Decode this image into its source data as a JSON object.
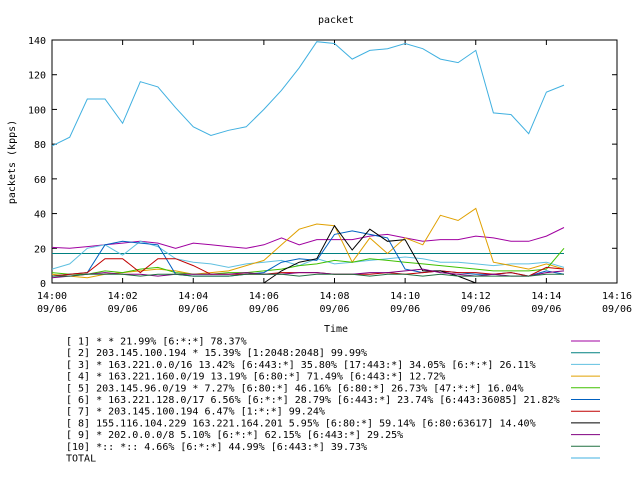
{
  "chart_data": {
    "type": "line",
    "title": "packet",
    "xlabel": "Time",
    "ylabel": "packets (kpps)",
    "ylim": [
      0,
      140
    ],
    "yticks": [
      0,
      20,
      40,
      60,
      80,
      100,
      120,
      140
    ],
    "xlim": [
      "14:00",
      "14:16"
    ],
    "xticks": [
      {
        "time": "14:00",
        "date": "09/06"
      },
      {
        "time": "14:02",
        "date": "09/06"
      },
      {
        "time": "14:04",
        "date": "09/06"
      },
      {
        "time": "14:06",
        "date": "09/06"
      },
      {
        "time": "14:08",
        "date": "09/06"
      },
      {
        "time": "14:10",
        "date": "09/06"
      },
      {
        "time": "14:12",
        "date": "09/06"
      },
      {
        "time": "14:14",
        "date": "09/06"
      },
      {
        "time": "14:16",
        "date": "09/06"
      }
    ],
    "grid": false,
    "legend_position": "bottom",
    "x": [
      "14:00:00",
      "14:00:30",
      "14:01:00",
      "14:01:30",
      "14:02:00",
      "14:02:30",
      "14:03:00",
      "14:03:30",
      "14:04:00",
      "14:04:30",
      "14:05:00",
      "14:05:30",
      "14:06:00",
      "14:06:30",
      "14:07:00",
      "14:07:30",
      "14:08:00",
      "14:08:30",
      "14:09:00",
      "14:09:30",
      "14:10:00",
      "14:10:30",
      "14:11:00",
      "14:11:30",
      "14:12:00",
      "14:12:30",
      "14:13:00",
      "14:13:30",
      "14:14:00",
      "14:14:30"
    ],
    "series": [
      {
        "name": "[ 1] * * 21.99%  [6:*:*] 78.37%",
        "color": "#a000a0",
        "values": [
          20.5,
          20,
          21,
          22,
          23,
          24,
          23,
          20,
          23,
          22,
          21,
          20,
          22,
          26,
          22,
          25,
          25,
          25,
          27,
          28,
          26,
          24,
          25,
          25,
          27,
          26,
          24,
          24,
          27,
          32
        ]
      },
      {
        "name": "[ 2] 203.145.100.194 * 15.39%  [1:2048:2048] 99.99%",
        "color": "#008080",
        "values": [
          17,
          17,
          17,
          17,
          17,
          17,
          17,
          17,
          17,
          17,
          17,
          17,
          17,
          17,
          17,
          17,
          17,
          17,
          17,
          17,
          17,
          17,
          17,
          17,
          17,
          17,
          17,
          17,
          17,
          17
        ]
      },
      {
        "name": "[ 3] * 163.221.0.0/16 13.42%  [6:443:*] 35.80% [17:443:*] 34.05% [6:*:*] 26.11%",
        "color": "#60c0e0",
        "values": [
          8,
          11,
          20,
          22,
          16,
          24,
          21,
          14,
          12,
          11,
          9,
          11,
          12,
          13,
          10,
          14,
          11,
          12,
          13,
          14,
          15,
          14,
          12,
          12,
          11,
          10,
          11,
          11,
          12,
          9
        ]
      },
      {
        "name": "[ 4] * 163.221.160.0/19 13.19%  [6:80:*] 71.49% [6:443:*] 12.72%",
        "color": "#e0a000",
        "values": [
          5,
          4,
          3,
          5,
          6,
          7,
          8,
          7,
          5,
          6,
          7,
          10,
          13,
          22,
          31,
          34,
          33,
          12,
          26,
          17,
          26,
          22,
          39,
          36,
          43,
          12,
          10,
          8,
          11,
          8
        ]
      },
      {
        "name": "[ 5] 203.145.96.0/19 * 7.27%  [6:80:*] 46.16% [6:80:*] 26.73% [47:*:*] 16.04%",
        "color": "#40c000",
        "values": [
          6,
          5,
          5,
          7,
          6,
          8,
          9,
          6,
          5,
          5,
          6,
          6,
          7,
          8,
          10,
          11,
          13,
          12,
          14,
          13,
          12,
          11,
          10,
          9,
          8,
          7,
          7,
          7,
          8,
          20
        ]
      },
      {
        "name": "[ 6] * 163.221.128.0/17 6.56%  [6:*:*] 28.79% [6:443:*] 23.74% [6:443:36085] 21.82%",
        "color": "#0060c0",
        "values": [
          4,
          5,
          6,
          22,
          24,
          23,
          22,
          5,
          4,
          4,
          4,
          5,
          6,
          12,
          14,
          13,
          28,
          30,
          28,
          26,
          8,
          6,
          7,
          6,
          5,
          5,
          6,
          4,
          7,
          5
        ]
      },
      {
        "name": "[ 7] * 203.145.100.194 6.47%  [1:*:*] 99.24%",
        "color": "#c00000",
        "values": [
          4,
          5,
          6,
          14,
          14,
          6,
          14,
          14,
          10,
          5,
          5,
          5,
          5,
          6,
          6,
          6,
          5,
          5,
          5,
          6,
          5,
          6,
          7,
          6,
          6,
          5,
          6,
          4,
          9,
          8
        ]
      },
      {
        "name": "[ 8] 155.116.104.229 163.221.164.201 5.95%  [6:80:*] 59.14% [6:80:63617] 14.40%",
        "color": "#000000",
        "values": [
          null,
          null,
          null,
          null,
          null,
          null,
          null,
          null,
          null,
          null,
          null,
          null,
          0,
          7,
          12,
          14,
          33,
          19,
          31,
          24,
          25,
          7,
          7,
          4,
          0,
          null,
          null,
          null,
          null,
          null
        ]
      },
      {
        "name": "[ 9] * 202.0.0.0/8 5.10%  [6:*:*] 62.15% [6:443:*] 29.25%",
        "color": "#800080",
        "values": [
          3,
          4,
          5,
          6,
          5,
          5,
          4,
          5,
          5,
          5,
          5,
          6,
          5,
          5,
          6,
          6,
          5,
          5,
          6,
          6,
          7,
          8,
          6,
          5,
          4,
          5,
          4,
          4,
          6,
          7
        ]
      },
      {
        "name": "[10] *:: *:: 4.66%  [6:*:*] 44.99% [6:443:*] 39.73%",
        "color": "#207040",
        "values": [
          4,
          4,
          5,
          5,
          5,
          4,
          5,
          5,
          4,
          4,
          4,
          5,
          5,
          5,
          4,
          5,
          5,
          5,
          4,
          5,
          5,
          4,
          5,
          4,
          4,
          4,
          4,
          4,
          5,
          5
        ]
      },
      {
        "name": "TOTAL",
        "color": "#40b0e0",
        "values": [
          79,
          84,
          106,
          106,
          92,
          116,
          113,
          101,
          90,
          85,
          88,
          90,
          100,
          111,
          124,
          139,
          138,
          129,
          134,
          135,
          138,
          135,
          129,
          127,
          134,
          98,
          97,
          86,
          110,
          114
        ]
      }
    ]
  }
}
